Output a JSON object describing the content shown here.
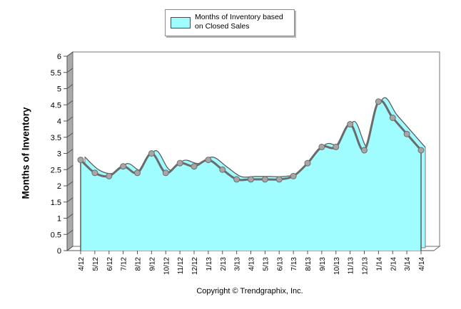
{
  "chart_data": {
    "type": "area",
    "title": "",
    "xlabel": "",
    "ylabel": "Months of Inventory",
    "ylim": [
      0,
      6
    ],
    "yticks": [
      "0",
      "0.5",
      "1",
      "1.5",
      "2",
      "2.5",
      "3",
      "3.5",
      "4",
      "4.5",
      "5",
      "5.5",
      "6"
    ],
    "categories": [
      "4/12",
      "5/12",
      "6/12",
      "7/12",
      "8/12",
      "9/12",
      "10/12",
      "11/12",
      "12/12",
      "1/13",
      "2/13",
      "3/13",
      "4/13",
      "5/13",
      "6/13",
      "7/13",
      "8/13",
      "9/13",
      "10/13",
      "11/13",
      "12/13",
      "1/14",
      "2/14",
      "3/14",
      "4/14"
    ],
    "series": [
      {
        "name": "Months of Inventory based on Closed Sales",
        "values": [
          2.8,
          2.4,
          2.3,
          2.6,
          2.4,
          3.0,
          2.4,
          2.7,
          2.6,
          2.8,
          2.5,
          2.2,
          2.2,
          2.2,
          2.2,
          2.3,
          2.7,
          3.2,
          3.2,
          3.9,
          3.1,
          4.6,
          4.1,
          3.6,
          3.1
        ]
      }
    ],
    "legend": {
      "position": "top",
      "label_line1": "Months of Inventory based",
      "label_line2": "on Closed Sales"
    },
    "colors": {
      "fill": "#9ffcff",
      "line": "#6b6b6b",
      "marker": "#a6a6a6"
    },
    "grid": false
  },
  "footer": {
    "copyright": "Copyright © Trendgraphix, Inc."
  }
}
